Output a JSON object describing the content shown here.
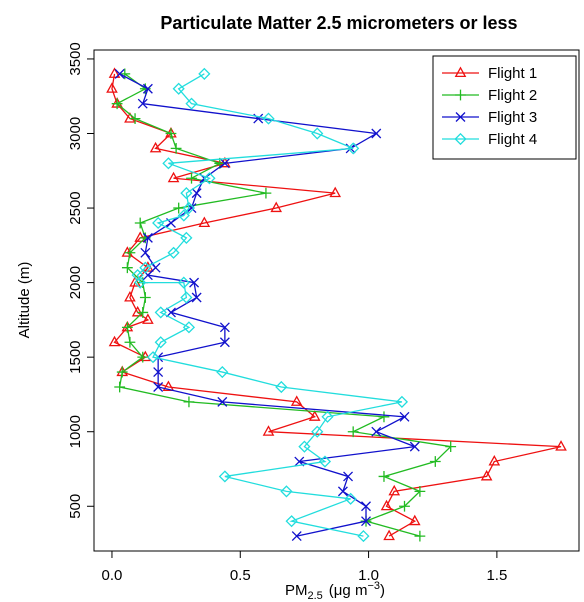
{
  "chart_data": {
    "type": "line",
    "title": "Particulate Matter 2.5 micrometers or less",
    "xlabel": {
      "prefix": "PM",
      "subscript": "2.5",
      "units": "(μg m",
      "units_sup": "−3",
      "units_close": ")"
    },
    "ylabel": "Altitude  (m)",
    "xlim": [
      -0.07,
      1.82
    ],
    "ylim": [
      200,
      3560
    ],
    "xticks": [
      0.0,
      0.5,
      1.0,
      1.5
    ],
    "xtick_labels": [
      "0.0",
      "0.5",
      "1.0",
      "1.5"
    ],
    "yticks": [
      500,
      1000,
      1500,
      2000,
      2500,
      3000,
      3500
    ],
    "ytick_labels": [
      "500",
      "1000",
      "1500",
      "2000",
      "2500",
      "3000",
      "3500"
    ],
    "grid": false,
    "legend_position": "top-right",
    "series": [
      {
        "name": "Flight 1",
        "color": "#ee1111",
        "marker": "triangle",
        "points": [
          [
            0.01,
            3400
          ],
          [
            0.0,
            3300
          ],
          [
            0.02,
            3200
          ],
          [
            0.07,
            3100
          ],
          [
            0.23,
            3000
          ],
          [
            0.17,
            2900
          ],
          [
            0.44,
            2800
          ],
          [
            0.24,
            2700
          ],
          [
            0.87,
            2600
          ],
          [
            0.64,
            2500
          ],
          [
            0.36,
            2400
          ],
          [
            0.11,
            2300
          ],
          [
            0.06,
            2200
          ],
          [
            0.14,
            2100
          ],
          [
            0.09,
            2000
          ],
          [
            0.07,
            1900
          ],
          [
            0.1,
            1800
          ],
          [
            0.14,
            1750
          ],
          [
            0.06,
            1700
          ],
          [
            0.01,
            1600
          ],
          [
            0.13,
            1500
          ],
          [
            0.04,
            1400
          ],
          [
            0.22,
            1300
          ],
          [
            0.72,
            1200
          ],
          [
            0.79,
            1100
          ],
          [
            0.61,
            1000
          ],
          [
            1.75,
            900
          ],
          [
            1.49,
            800
          ],
          [
            1.46,
            700
          ],
          [
            1.1,
            600
          ],
          [
            1.07,
            500
          ],
          [
            1.18,
            400
          ],
          [
            1.08,
            300
          ]
        ]
      },
      {
        "name": "Flight 2",
        "color": "#22bb22",
        "marker": "plus",
        "points": [
          [
            0.05,
            3400
          ],
          [
            0.13,
            3300
          ],
          [
            0.02,
            3200
          ],
          [
            0.09,
            3100
          ],
          [
            0.23,
            3000
          ],
          [
            0.25,
            2900
          ],
          [
            0.42,
            2800
          ],
          [
            0.31,
            2700
          ],
          [
            0.6,
            2600
          ],
          [
            0.26,
            2500
          ],
          [
            0.11,
            2400
          ],
          [
            0.13,
            2300
          ],
          [
            0.07,
            2200
          ],
          [
            0.06,
            2100
          ],
          [
            0.12,
            2000
          ],
          [
            0.13,
            1900
          ],
          [
            0.12,
            1800
          ],
          [
            0.06,
            1700
          ],
          [
            0.07,
            1600
          ],
          [
            0.12,
            1500
          ],
          [
            0.04,
            1400
          ],
          [
            0.03,
            1300
          ],
          [
            0.3,
            1200
          ],
          [
            1.06,
            1100
          ],
          [
            0.94,
            1000
          ],
          [
            1.32,
            900
          ],
          [
            1.26,
            800
          ],
          [
            1.06,
            700
          ],
          [
            1.2,
            600
          ],
          [
            1.14,
            500
          ],
          [
            0.99,
            400
          ],
          [
            1.2,
            300
          ]
        ]
      },
      {
        "name": "Flight 3",
        "color": "#1111cc",
        "marker": "cross",
        "points": [
          [
            0.03,
            3400
          ],
          [
            0.14,
            3300
          ],
          [
            0.12,
            3200
          ],
          [
            0.57,
            3100
          ],
          [
            1.03,
            3000
          ],
          [
            0.93,
            2900
          ],
          [
            0.44,
            2800
          ],
          [
            0.36,
            2700
          ],
          [
            0.33,
            2600
          ],
          [
            0.31,
            2500
          ],
          [
            0.23,
            2400
          ],
          [
            0.14,
            2300
          ],
          [
            0.13,
            2200
          ],
          [
            0.17,
            2100
          ],
          [
            0.14,
            2050
          ],
          [
            0.32,
            2000
          ],
          [
            0.33,
            1900
          ],
          [
            0.23,
            1800
          ],
          [
            0.44,
            1700
          ],
          [
            0.44,
            1600
          ],
          [
            0.18,
            1500
          ],
          [
            0.18,
            1400
          ],
          [
            0.18,
            1300
          ],
          [
            0.43,
            1200
          ],
          [
            1.14,
            1100
          ],
          [
            1.03,
            1000
          ],
          [
            1.18,
            900
          ],
          [
            0.73,
            800
          ],
          [
            0.92,
            700
          ],
          [
            0.9,
            600
          ],
          [
            0.99,
            500
          ],
          [
            0.99,
            400
          ],
          [
            0.72,
            300
          ]
        ]
      },
      {
        "name": "Flight 4",
        "color": "#22dddd",
        "marker": "diamond",
        "points": [
          [
            0.36,
            3400
          ],
          [
            0.26,
            3300
          ],
          [
            0.31,
            3200
          ],
          [
            0.61,
            3100
          ],
          [
            0.8,
            3000
          ],
          [
            0.94,
            2900
          ],
          [
            0.22,
            2800
          ],
          [
            0.38,
            2700
          ],
          [
            0.29,
            2600
          ],
          [
            0.3,
            2500
          ],
          [
            0.28,
            2450
          ],
          [
            0.18,
            2400
          ],
          [
            0.29,
            2300
          ],
          [
            0.24,
            2200
          ],
          [
            0.13,
            2100
          ],
          [
            0.1,
            2050
          ],
          [
            0.11,
            2000
          ],
          [
            0.28,
            2000
          ],
          [
            0.29,
            1900
          ],
          [
            0.19,
            1800
          ],
          [
            0.3,
            1700
          ],
          [
            0.19,
            1600
          ],
          [
            0.16,
            1500
          ],
          [
            0.43,
            1400
          ],
          [
            0.66,
            1300
          ],
          [
            1.13,
            1200
          ],
          [
            0.84,
            1100
          ],
          [
            0.8,
            1000
          ],
          [
            0.75,
            900
          ],
          [
            0.83,
            800
          ],
          [
            0.44,
            700
          ],
          [
            0.68,
            600
          ],
          [
            0.93,
            550
          ],
          [
            0.7,
            400
          ],
          [
            0.98,
            300
          ]
        ]
      }
    ]
  }
}
